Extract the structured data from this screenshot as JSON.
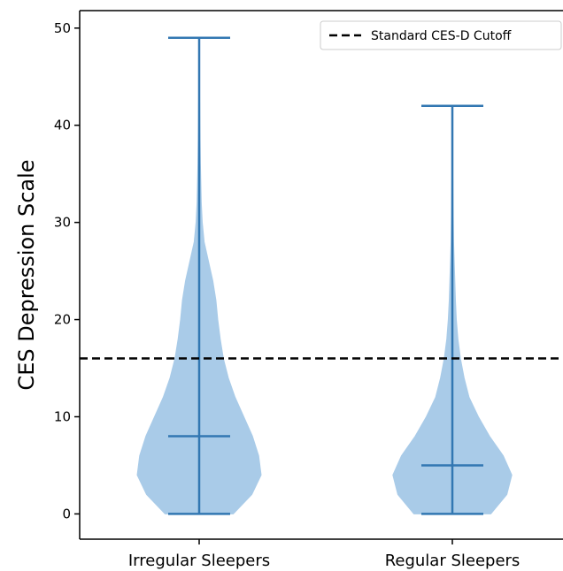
{
  "chart_data": {
    "type": "violin",
    "title": "",
    "xlabel": "",
    "ylabel": "CES Depression Scale",
    "ylim": [
      -2.6,
      51.8
    ],
    "yticks": [
      0,
      10,
      20,
      30,
      40,
      50
    ],
    "categories": [
      "Irregular Sleepers",
      "Regular Sleepers"
    ],
    "series": [
      {
        "category": "Irregular Sleepers",
        "min": 0,
        "max": 49,
        "median": 8,
        "density_profile": [
          {
            "y": 0,
            "w": 0.55
          },
          {
            "y": 2,
            "w": 0.85
          },
          {
            "y": 4,
            "w": 1.0
          },
          {
            "y": 6,
            "w": 0.96
          },
          {
            "y": 8,
            "w": 0.86
          },
          {
            "y": 10,
            "w": 0.72
          },
          {
            "y": 12,
            "w": 0.58
          },
          {
            "y": 14,
            "w": 0.47
          },
          {
            "y": 16,
            "w": 0.39
          },
          {
            "y": 18,
            "w": 0.34
          },
          {
            "y": 20,
            "w": 0.3
          },
          {
            "y": 22,
            "w": 0.27
          },
          {
            "y": 24,
            "w": 0.22
          },
          {
            "y": 26,
            "w": 0.15
          },
          {
            "y": 28,
            "w": 0.08
          },
          {
            "y": 30,
            "w": 0.05
          },
          {
            "y": 32,
            "w": 0.035
          },
          {
            "y": 36,
            "w": 0.02
          },
          {
            "y": 40,
            "w": 0.012
          },
          {
            "y": 44,
            "w": 0.006
          },
          {
            "y": 49,
            "w": 0.0
          }
        ]
      },
      {
        "category": "Regular Sleepers",
        "min": 0,
        "max": 42,
        "median": 5,
        "density_profile": [
          {
            "y": 0,
            "w": 0.62
          },
          {
            "y": 2,
            "w": 0.88
          },
          {
            "y": 4,
            "w": 0.96
          },
          {
            "y": 6,
            "w": 0.82
          },
          {
            "y": 8,
            "w": 0.6
          },
          {
            "y": 10,
            "w": 0.42
          },
          {
            "y": 12,
            "w": 0.27
          },
          {
            "y": 14,
            "w": 0.19
          },
          {
            "y": 16,
            "w": 0.13
          },
          {
            "y": 18,
            "w": 0.09
          },
          {
            "y": 20,
            "w": 0.065
          },
          {
            "y": 22,
            "w": 0.05
          },
          {
            "y": 24,
            "w": 0.04
          },
          {
            "y": 26,
            "w": 0.03
          },
          {
            "y": 28,
            "w": 0.02
          },
          {
            "y": 32,
            "w": 0.012
          },
          {
            "y": 36,
            "w": 0.006
          },
          {
            "y": 42,
            "w": 0.0
          }
        ]
      }
    ],
    "reference_line": {
      "label": "Standard CES-D Cutoff",
      "y": 16,
      "style": "dashed",
      "color": "#000000"
    },
    "legend": {
      "position": "top-right",
      "entries": [
        "Standard CES-D Cutoff"
      ]
    },
    "grid": false,
    "colors": {
      "violin_fill": "#a9cbe8",
      "violin_stroke": "#3277b2",
      "axis": "#000000"
    }
  }
}
